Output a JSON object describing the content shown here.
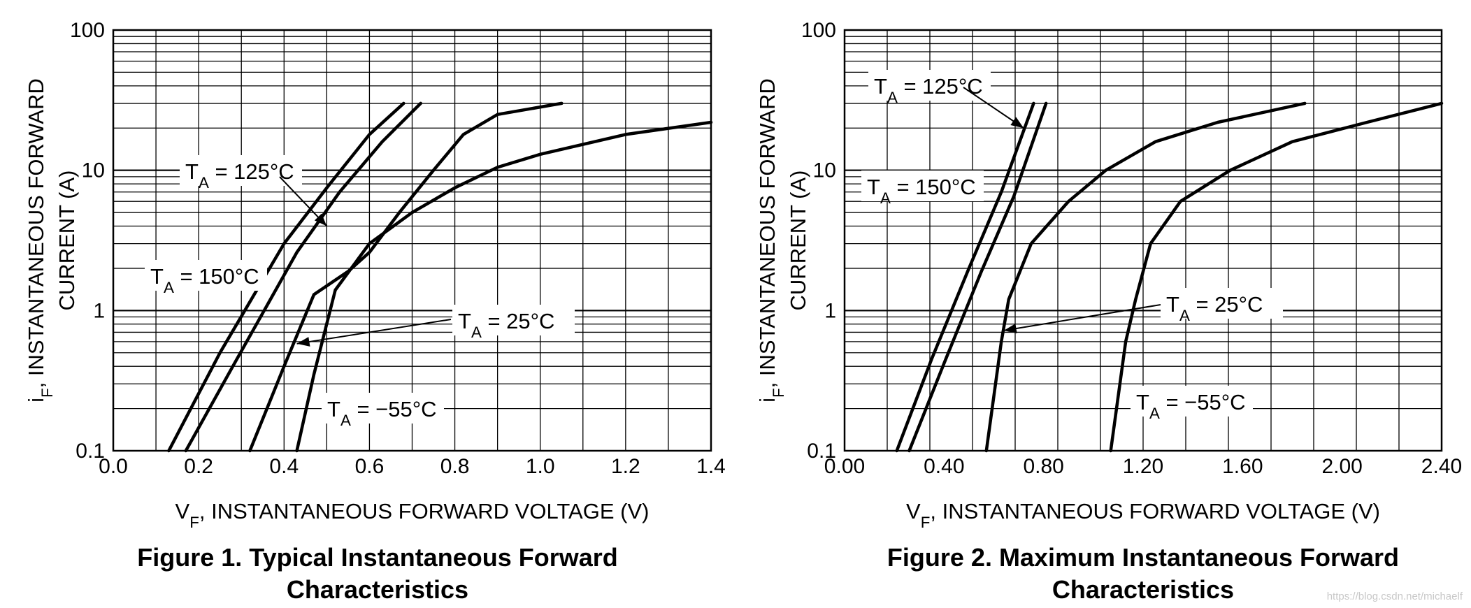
{
  "chart_data": [
    {
      "type": "line",
      "title": "Figure 1. Typical Instantaneous Forward",
      "title_line2": "Characteristics",
      "xlabel_main": "V",
      "xlabel_sub": "F",
      "xlabel_rest": ", INSTANTANEOUS FORWARD VOLTAGE (V)",
      "ylabel_main": "i",
      "ylabel_sub": "F",
      "ylabel_line1_rest": ", INSTANTANEOUS FORWARD",
      "ylabel_line2": "CURRENT (A)",
      "y_scale": "log",
      "xlim": [
        0.0,
        1.4
      ],
      "ylim": [
        0.1,
        100
      ],
      "x_ticks": [
        "0.0",
        "0.2",
        "0.4",
        "0.6",
        "0.8",
        "1.0",
        "1.2",
        "1.4"
      ],
      "y_ticks": [
        "0.1",
        "1",
        "10",
        "100"
      ],
      "grid": true,
      "series": [
        {
          "name": "TA = 125°C",
          "x": [
            0.13,
            0.25,
            0.4,
            0.5,
            0.6,
            0.68
          ],
          "y": [
            0.1,
            0.5,
            3,
            7.5,
            18,
            30
          ]
        },
        {
          "name": "TA = 150°C",
          "x": [
            0.17,
            0.28,
            0.43,
            0.53,
            0.63,
            0.72
          ],
          "y": [
            0.1,
            0.4,
            2.6,
            7,
            16,
            30
          ]
        },
        {
          "name": "TA = 25°C",
          "x": [
            0.32,
            0.4,
            0.47,
            0.55,
            0.6,
            0.67,
            0.75,
            0.82,
            0.9,
            1.05
          ],
          "y": [
            0.1,
            0.4,
            1.3,
            1.9,
            2.6,
            5,
            10,
            18,
            25,
            30
          ]
        },
        {
          "name": "TA = −55°C",
          "x": [
            0.43,
            0.47,
            0.52,
            0.6,
            0.7,
            0.8,
            0.9,
            1.0,
            1.2,
            1.4
          ],
          "y": [
            0.1,
            0.35,
            1.4,
            3,
            5,
            7.5,
            10.5,
            13,
            18,
            22
          ]
        }
      ],
      "annotations": [
        {
          "label": "T",
          "sub": "A",
          "rest": " = 125°C",
          "arrow_to": [
            0.5,
            4.0
          ]
        },
        {
          "label": "T",
          "sub": "A",
          "rest": " = 150°C"
        },
        {
          "label": "T",
          "sub": "A",
          "rest": " = 25°C",
          "arrow_to": [
            0.43,
            0.58
          ]
        },
        {
          "label": "T",
          "sub": "A",
          "rest": " = −55°C"
        }
      ]
    },
    {
      "type": "line",
      "title": "Figure 2. Maximum Instantaneous Forward",
      "title_line2": "Characteristics",
      "xlabel_main": "V",
      "xlabel_sub": "F",
      "xlabel_rest": ", INSTANTANEOUS FORWARD VOLTAGE (V)",
      "ylabel_main": "i",
      "ylabel_sub": "F",
      "ylabel_line1_rest": ", INSTANTANEOUS FORWARD",
      "ylabel_line2": "CURRENT (A)",
      "y_scale": "log",
      "xlim": [
        0.0,
        2.4
      ],
      "ylim": [
        0.1,
        100
      ],
      "x_ticks": [
        "0.00",
        "0.40",
        "0.80",
        "1.20",
        "1.60",
        "2.00",
        "2.40"
      ],
      "y_ticks": [
        "0.1",
        "1",
        "10",
        "100"
      ],
      "grid": true,
      "series": [
        {
          "name": "TA = 125°C",
          "x": [
            0.21,
            0.35,
            0.5,
            0.63,
            0.76
          ],
          "y": [
            0.1,
            0.45,
            2,
            7,
            30
          ]
        },
        {
          "name": "TA = 150°C",
          "x": [
            0.26,
            0.4,
            0.55,
            0.68,
            0.81
          ],
          "y": [
            0.1,
            0.42,
            1.9,
            6.5,
            30
          ]
        },
        {
          "name": "TA = 25°C",
          "x": [
            0.57,
            0.63,
            0.66,
            0.75,
            0.9,
            1.05,
            1.25,
            1.5,
            1.85
          ],
          "y": [
            0.1,
            0.6,
            1.2,
            3,
            6,
            10,
            16,
            22,
            30
          ]
        },
        {
          "name": "TA = −55°C",
          "x": [
            1.07,
            1.13,
            1.17,
            1.23,
            1.35,
            1.55,
            1.8,
            2.1,
            2.4
          ],
          "y": [
            0.1,
            0.6,
            1.2,
            3,
            6,
            10,
            16,
            22,
            30
          ]
        }
      ],
      "annotations": [
        {
          "label": "T",
          "sub": "A",
          "rest": " = 125°C",
          "arrow_to": [
            0.72,
            20
          ]
        },
        {
          "label": "T",
          "sub": "A",
          "rest": " = 150°C"
        },
        {
          "label": "T",
          "sub": "A",
          "rest": " = 25°C",
          "arrow_to": [
            0.64,
            0.72
          ]
        },
        {
          "label": "T",
          "sub": "A",
          "rest": " = −55°C"
        }
      ]
    }
  ],
  "watermark": "https://blog.csdn.net/michaelf"
}
